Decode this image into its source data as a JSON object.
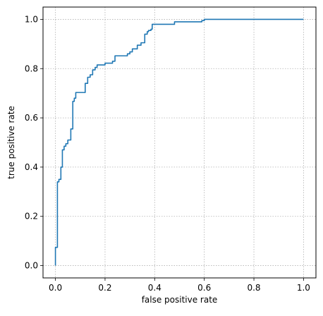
{
  "chart_data": {
    "type": "line",
    "title": "",
    "xlabel": "false positive rate",
    "ylabel": "true positive rate",
    "xlim": [
      -0.05,
      1.05
    ],
    "ylim": [
      -0.05,
      1.05
    ],
    "xticks": [
      0.0,
      0.2,
      0.4,
      0.6,
      0.8,
      1.0
    ],
    "yticks": [
      0.0,
      0.2,
      0.4,
      0.6,
      0.8,
      1.0
    ],
    "xtick_labels": [
      "0.0",
      "0.2",
      "0.4",
      "0.6",
      "0.8",
      "1.0"
    ],
    "ytick_labels": [
      "0.0",
      "0.2",
      "0.4",
      "0.6",
      "0.8",
      "1.0"
    ],
    "grid": true,
    "line_color": "#1f77b4",
    "grid_color": "#b0b0b0",
    "series": [
      {
        "x": [
          0.0,
          0.0,
          0.008,
          0.008,
          0.014,
          0.014,
          0.022,
          0.022,
          0.028,
          0.028,
          0.035,
          0.035,
          0.042,
          0.042,
          0.05,
          0.05,
          0.062,
          0.062,
          0.07,
          0.07,
          0.076,
          0.076,
          0.082,
          0.082,
          0.09,
          0.09,
          0.12,
          0.12,
          0.13,
          0.13,
          0.14,
          0.14,
          0.15,
          0.15,
          0.16,
          0.16,
          0.168,
          0.168,
          0.2,
          0.2,
          0.23,
          0.23,
          0.24,
          0.24,
          0.29,
          0.29,
          0.3,
          0.3,
          0.31,
          0.31,
          0.33,
          0.33,
          0.345,
          0.345,
          0.36,
          0.36,
          0.37,
          0.37,
          0.375,
          0.375,
          0.385,
          0.385,
          0.39,
          0.39,
          0.48,
          0.48,
          0.59,
          0.59,
          0.6,
          0.6,
          1.0
        ],
        "y": [
          0.0,
          0.074,
          0.074,
          0.34,
          0.34,
          0.35,
          0.35,
          0.4,
          0.4,
          0.47,
          0.47,
          0.485,
          0.485,
          0.495,
          0.495,
          0.51,
          0.51,
          0.555,
          0.555,
          0.667,
          0.667,
          0.68,
          0.68,
          0.703,
          0.703,
          0.703,
          0.703,
          0.74,
          0.74,
          0.765,
          0.765,
          0.775,
          0.775,
          0.795,
          0.795,
          0.805,
          0.805,
          0.815,
          0.815,
          0.822,
          0.822,
          0.83,
          0.83,
          0.852,
          0.852,
          0.86,
          0.86,
          0.868,
          0.868,
          0.88,
          0.88,
          0.895,
          0.895,
          0.905,
          0.905,
          0.94,
          0.94,
          0.95,
          0.95,
          0.955,
          0.955,
          0.96,
          0.96,
          0.98,
          0.98,
          0.99,
          0.99,
          0.995,
          0.995,
          1.0,
          1.0
        ]
      }
    ]
  }
}
